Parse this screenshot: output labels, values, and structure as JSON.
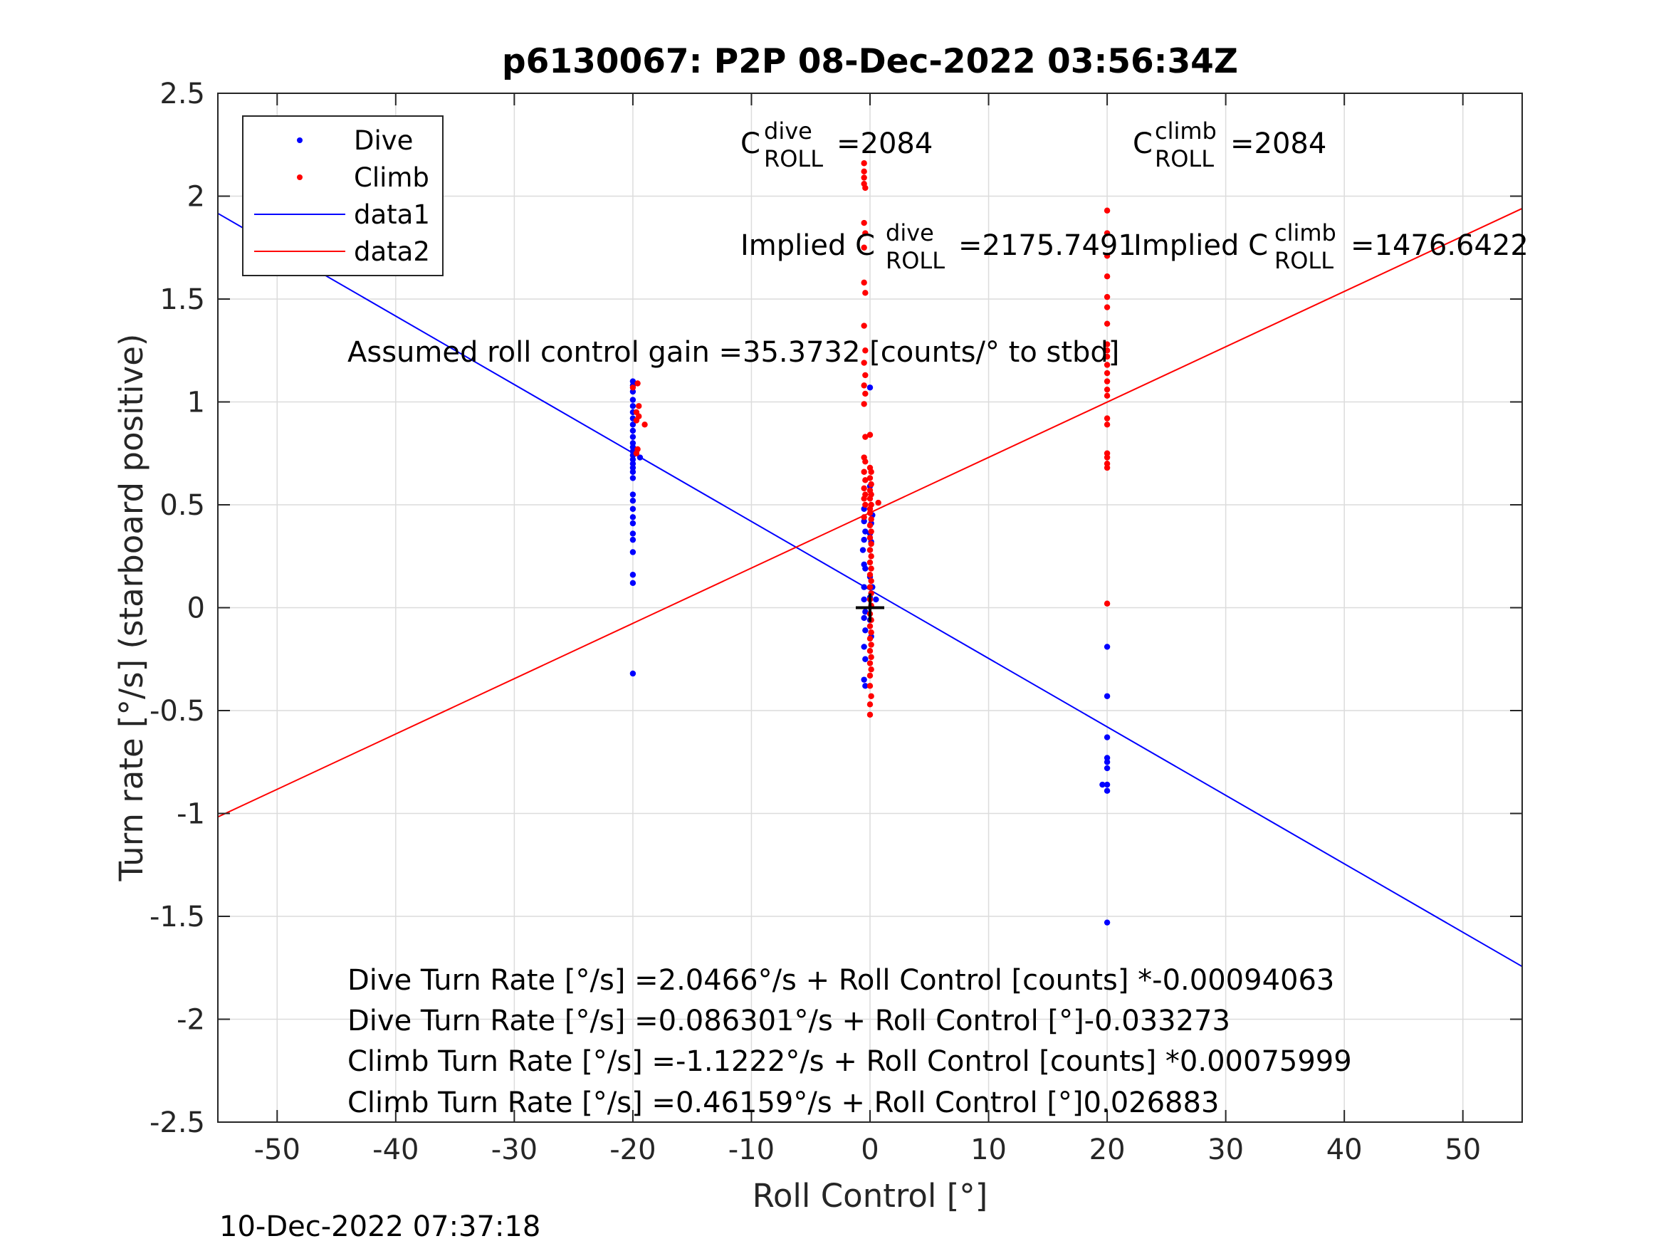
{
  "chart_data": {
    "type": "scatter",
    "title": "p6130067: P2P 08-Dec-2022 03:56:34Z",
    "xlabel": "Roll Control [°]",
    "ylabel": "Turn rate [°/s] (starboard positive)",
    "xlim": [
      -55,
      55
    ],
    "ylim": [
      -2.5,
      2.5
    ],
    "xticks": [
      -50,
      -40,
      -30,
      -20,
      -10,
      0,
      10,
      20,
      30,
      40,
      50
    ],
    "yticks": [
      2.5,
      2,
      1.5,
      1,
      0.5,
      0,
      -0.5,
      -1,
      -1.5,
      -2,
      -2.5
    ],
    "xtick_labels": [
      "-50",
      "-40",
      "-30",
      "-20",
      "-10",
      "0",
      "10",
      "20",
      "30",
      "40",
      "50"
    ],
    "ytick_labels": [
      "2.5",
      "2",
      "1.5",
      "1",
      "0.5",
      "0",
      "-0.5",
      "-1",
      "-1.5",
      "-2",
      "-2.5"
    ],
    "grid": true,
    "legend_placement": "top-left",
    "legend": [
      {
        "label": "Dive",
        "kind": "marker",
        "color": "#0000ff"
      },
      {
        "label": "Climb",
        "kind": "marker",
        "color": "#ff0000"
      },
      {
        "label": "data1",
        "kind": "line",
        "color": "#0000ff"
      },
      {
        "label": "data2",
        "kind": "line",
        "color": "#ff0000"
      }
    ],
    "series": [
      {
        "name": "Dive",
        "kind": "scatter",
        "color": "#0000ff",
        "points": [
          [
            -20,
            1.1
          ],
          [
            -20,
            1.08
          ],
          [
            -20,
            1.05
          ],
          [
            -20,
            1.01
          ],
          [
            -20,
            0.98
          ],
          [
            -20,
            0.95
          ],
          [
            -20,
            0.92
          ],
          [
            -20,
            0.89
          ],
          [
            -20,
            0.86
          ],
          [
            -20,
            0.83
          ],
          [
            -20,
            0.8
          ],
          [
            -20,
            0.78
          ],
          [
            -20,
            0.76
          ],
          [
            -20,
            0.74
          ],
          [
            -20,
            0.72
          ],
          [
            -20,
            0.7
          ],
          [
            -20,
            0.68
          ],
          [
            -20,
            0.66
          ],
          [
            -20,
            0.63
          ],
          [
            -20,
            0.55
          ],
          [
            -20,
            0.52
          ],
          [
            -20,
            0.48
          ],
          [
            -20,
            0.44
          ],
          [
            -20,
            0.41
          ],
          [
            -20,
            0.36
          ],
          [
            -20,
            0.33
          ],
          [
            -20,
            0.27
          ],
          [
            -20,
            0.16
          ],
          [
            -20,
            0.12
          ],
          [
            -20,
            -0.32
          ],
          [
            -19.4,
            0.73
          ],
          [
            -0.5,
            0.48
          ],
          [
            -0.5,
            0.42
          ],
          [
            -0.4,
            0.37
          ],
          [
            -0.5,
            0.33
          ],
          [
            -0.6,
            0.28
          ],
          [
            -0.5,
            0.21
          ],
          [
            -0.4,
            0.19
          ],
          [
            -0.5,
            0.1
          ],
          [
            -0.5,
            0.04
          ],
          [
            -0.4,
            -0.02
          ],
          [
            -0.5,
            -0.05
          ],
          [
            -0.4,
            -0.11
          ],
          [
            -0.5,
            -0.19
          ],
          [
            -0.4,
            -0.25
          ],
          [
            -0.5,
            -0.35
          ],
          [
            -0.4,
            -0.38
          ],
          [
            0,
            1.07
          ],
          [
            0,
            0.59
          ],
          [
            0.2,
            0.45
          ],
          [
            0.1,
            0.41
          ],
          [
            0,
            0.36
          ],
          [
            0.1,
            0.32
          ],
          [
            0,
            0.28
          ],
          [
            0,
            0.15
          ],
          [
            0.2,
            0.1
          ],
          [
            0,
            0.05
          ],
          [
            0.5,
            0.04
          ],
          [
            0,
            -0.06
          ],
          [
            0.1,
            -0.14
          ],
          [
            20,
            -0.19
          ],
          [
            20,
            -0.43
          ],
          [
            20,
            -0.63
          ],
          [
            20,
            -0.73
          ],
          [
            20,
            -0.75
          ],
          [
            20,
            -0.78
          ],
          [
            19.6,
            -0.86
          ],
          [
            20,
            -0.86
          ],
          [
            20,
            -0.89
          ],
          [
            20,
            -1.53
          ]
        ]
      },
      {
        "name": "Climb",
        "kind": "scatter",
        "color": "#ff0000",
        "points": [
          [
            -19.6,
            1.09
          ],
          [
            -20,
            1.07
          ],
          [
            -19.5,
            0.98
          ],
          [
            -19.7,
            0.95
          ],
          [
            -19.5,
            0.93
          ],
          [
            -19.7,
            0.91
          ],
          [
            -19,
            0.89
          ],
          [
            -19.6,
            0.77
          ],
          [
            -19.7,
            0.75
          ],
          [
            -0.5,
            2.16
          ],
          [
            -0.5,
            2.12
          ],
          [
            -0.5,
            2.09
          ],
          [
            -0.5,
            2.06
          ],
          [
            -0.4,
            2.04
          ],
          [
            -0.5,
            1.87
          ],
          [
            -0.4,
            1.82
          ],
          [
            -0.5,
            1.75
          ],
          [
            -0.5,
            1.58
          ],
          [
            -0.4,
            1.53
          ],
          [
            -0.5,
            1.37
          ],
          [
            -0.4,
            1.25
          ],
          [
            -0.5,
            1.19
          ],
          [
            -0.4,
            1.13
          ],
          [
            -0.5,
            1.08
          ],
          [
            -0.4,
            1.04
          ],
          [
            -0.5,
            0.99
          ],
          [
            -0.4,
            0.83
          ],
          [
            -0.5,
            0.73
          ],
          [
            -0.4,
            0.71
          ],
          [
            -0.5,
            0.66
          ],
          [
            -0.4,
            0.62
          ],
          [
            -0.5,
            0.58
          ],
          [
            -0.4,
            0.55
          ],
          [
            -0.5,
            0.53
          ],
          [
            -0.4,
            0.5
          ],
          [
            -0.5,
            0.44
          ],
          [
            0,
            0.84
          ],
          [
            0,
            0.68
          ],
          [
            0.1,
            0.66
          ],
          [
            0,
            0.63
          ],
          [
            0.1,
            0.6
          ],
          [
            0,
            0.57
          ],
          [
            0.1,
            0.55
          ],
          [
            0,
            0.53
          ],
          [
            0.1,
            0.5
          ],
          [
            0,
            0.48
          ],
          [
            0.7,
            0.51
          ],
          [
            0,
            0.46
          ],
          [
            0.1,
            0.43
          ],
          [
            0,
            0.4
          ],
          [
            0.1,
            0.37
          ],
          [
            0,
            0.34
          ],
          [
            0.1,
            0.31
          ],
          [
            0,
            0.28
          ],
          [
            0.1,
            0.25
          ],
          [
            0,
            0.22
          ],
          [
            0.1,
            0.19
          ],
          [
            0,
            0.16
          ],
          [
            0.1,
            0.13
          ],
          [
            0,
            0.1
          ],
          [
            0.1,
            0.07
          ],
          [
            0,
            0.04
          ],
          [
            0.1,
            0.01
          ],
          [
            0,
            -0.03
          ],
          [
            0.1,
            -0.06
          ],
          [
            0,
            -0.09
          ],
          [
            0.1,
            -0.12
          ],
          [
            0,
            -0.15
          ],
          [
            0.1,
            -0.18
          ],
          [
            0,
            -0.21
          ],
          [
            0.1,
            -0.24
          ],
          [
            0,
            -0.27
          ],
          [
            0.1,
            -0.3
          ],
          [
            0,
            -0.33
          ],
          [
            0,
            -0.38
          ],
          [
            0.1,
            -0.43
          ],
          [
            0,
            -0.47
          ],
          [
            0,
            -0.52
          ],
          [
            20,
            1.93
          ],
          [
            20,
            1.82
          ],
          [
            20,
            1.71
          ],
          [
            20,
            1.61
          ],
          [
            20,
            1.51
          ],
          [
            20,
            1.46
          ],
          [
            20,
            1.38
          ],
          [
            20,
            1.28
          ],
          [
            20,
            1.25
          ],
          [
            20,
            1.22
          ],
          [
            20,
            1.18
          ],
          [
            20,
            1.14
          ],
          [
            20,
            1.1
          ],
          [
            20,
            1.06
          ],
          [
            20,
            1.03
          ],
          [
            20,
            0.92
          ],
          [
            20,
            0.89
          ],
          [
            20,
            0.75
          ],
          [
            20,
            0.73
          ],
          [
            20,
            0.7
          ],
          [
            20,
            0.68
          ],
          [
            20,
            0.02
          ]
        ]
      },
      {
        "name": "data1",
        "kind": "line",
        "color": "#0000ff",
        "intercept": 0.086301,
        "slope": -0.033273
      },
      {
        "name": "data2",
        "kind": "line",
        "color": "#ff0000",
        "intercept": 0.46159,
        "slope": 0.026883
      }
    ],
    "origin_marker": [
      0,
      0
    ],
    "annotations": {
      "c_dive": {
        "base": "C",
        "sup": "dive",
        "sub": "ROLL",
        "value": "=2084"
      },
      "c_climb": {
        "base": "C",
        "sup": "climb",
        "sub": "ROLL",
        "value": "=2084"
      },
      "implied_dive": {
        "prefix": "Implied C",
        "sup": "dive",
        "sub": "ROLL",
        "value": "=2175.7491"
      },
      "implied_climb": {
        "prefix": "Implied C",
        "sup": "climb",
        "sub": "ROLL",
        "value": "=1476.6422"
      },
      "gain": "Assumed roll control gain =35.3732 [counts/° to stbd]",
      "fit_lines": [
        "Dive Turn Rate [°/s] =2.0466°/s + Roll Control [counts] *-0.00094063",
        "Dive Turn Rate [°/s] =0.086301°/s + Roll Control [°]-0.033273",
        "Climb Turn Rate [°/s] =-1.1222°/s + Roll Control [counts] *0.00075999",
        "Climb Turn Rate [°/s] =0.46159°/s + Roll Control [°]0.026883"
      ]
    }
  },
  "footer_timestamp": "10-Dec-2022 07:37:18"
}
